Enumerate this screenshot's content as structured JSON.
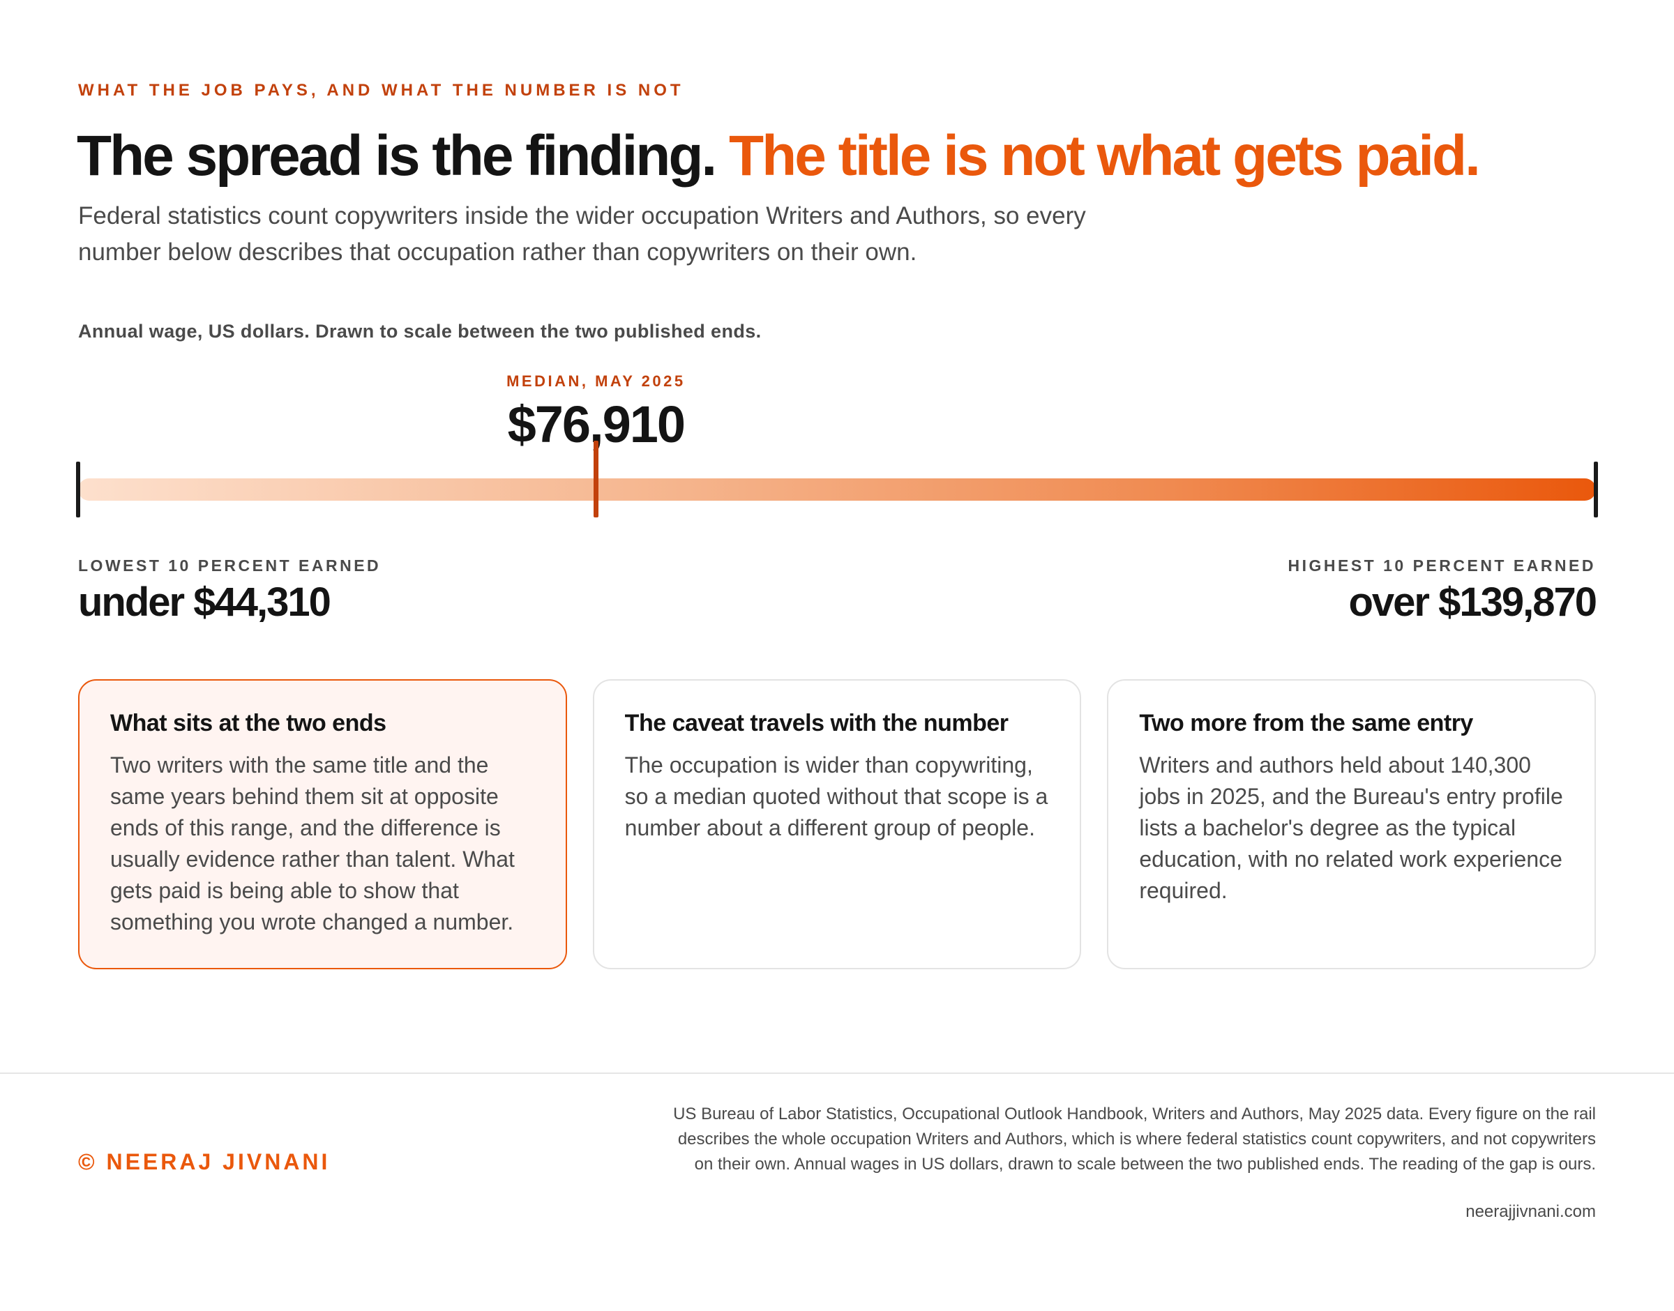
{
  "header": {
    "kicker": "WHAT THE JOB PAYS, AND WHAT THE NUMBER IS NOT",
    "headline_main": "The spread is the finding.",
    "headline_accent": "The title is not what gets paid.",
    "standfirst": "Federal statistics count copywriters inside the wider occupation Writers and Authors, so every number below describes that occupation rather than copywriters on their own."
  },
  "chart_data": {
    "type": "range",
    "note": "Annual wage, US dollars. Drawn to scale between the two published ends.",
    "low": {
      "label": "LOWEST 10 PERCENT EARNED",
      "value": 44310,
      "display": "under $44,310"
    },
    "median": {
      "label": "MEDIAN, MAY 2025",
      "value": 76910,
      "display": "$76,910"
    },
    "high": {
      "label": "HIGHEST 10 PERCENT EARNED",
      "value": 139870,
      "display": "over $139,870"
    },
    "colors": {
      "gradient_start": "#fde0cd",
      "gradient_end": "#ea580c",
      "median_tick": "#c2410c",
      "end_caps": "#1a1a1a"
    }
  },
  "cards": [
    {
      "title": "What sits at the two ends",
      "body": "Two writers with the same title and the same years behind them sit at opposite ends of this range, and the difference is usually evidence rather than talent. What gets paid is being able to show that something you wrote changed a number."
    },
    {
      "title": "The caveat travels with the number",
      "body": "The occupation is wider than copywriting, so a median quoted without that scope is a number about a different group of people."
    },
    {
      "title": "Two more from the same entry",
      "body": "Writers and authors held about 140,300 jobs in 2025, and the Bureau's entry profile lists a bachelor's degree as the typical education, with no related work experience required."
    }
  ],
  "footer": {
    "brand": "© NEERAJ JIVNANI",
    "source": "US Bureau of Labor Statistics, Occupational Outlook Handbook, Writers and Authors, May 2025 data. Every figure on the rail describes the whole occupation Writers and Authors, which is where federal statistics count copywriters, and not copywriters on their own. Annual wages in US dollars, drawn to scale between the two published ends. The reading of the gap is ours.",
    "url": "neerajjivnani.com"
  },
  "colors": {
    "accent": "#ea580c",
    "accent_dark": "#c2410c",
    "text": "#141414",
    "muted": "#4a4a4a"
  }
}
